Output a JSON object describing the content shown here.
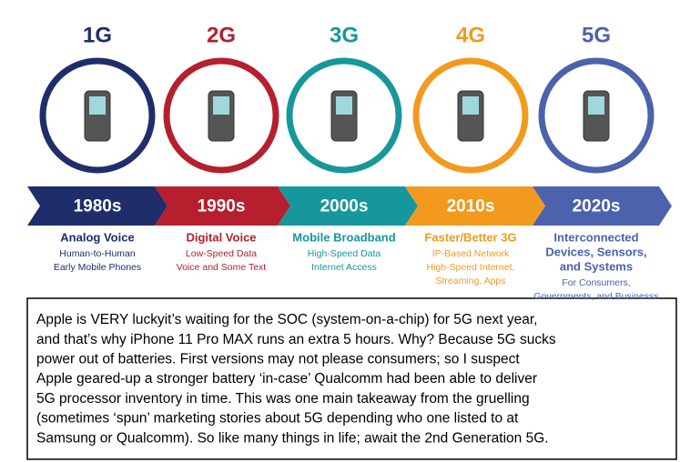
{
  "generations": [
    {
      "label": "1G",
      "decade": "1980s",
      "title": [
        "Analog Voice"
      ],
      "lines": [
        "Human-to-Human",
        "Early Mobile Phones"
      ],
      "color": "#1f2d6b"
    },
    {
      "label": "2G",
      "decade": "1990s",
      "title": [
        "Digital Voice"
      ],
      "lines": [
        "Low-Speed Data",
        "Voice and Some Text"
      ],
      "color": "#b51f2e"
    },
    {
      "label": "3G",
      "decade": "2000s",
      "title": [
        "Mobile Broadband"
      ],
      "lines": [
        "High-Speed Data",
        "Internet Access"
      ],
      "color": "#16979b"
    },
    {
      "label": "4G",
      "decade": "2010s",
      "title": [
        "Faster/Better 3G"
      ],
      "lines": [
        "IP-Based Network",
        "High-Speed Internet,",
        "Streaming, Apps"
      ],
      "color": "#f29a1e"
    },
    {
      "label": "5G",
      "decade": "2020s",
      "title": [
        "Interconnected",
        "Devices, Sensors,",
        "and Systems"
      ],
      "lines": [
        "For Consumers,",
        "Governments, and Businesss"
      ],
      "color": "#4c62ad"
    }
  ],
  "note": {
    "lines": [
      "Apple is VERY luckyit’s waiting for the SOC (system-on-a-chip) for 5G next year,",
      "and that’s why iPhone 11 Pro MAX runs an extra 5 hours. Why? Because 5G sucks",
      "power out of batteries. First versions may not please consumers; so I suspect",
      "Apple geared-up a stronger battery ‘in-case’ Qualcomm had been able to deliver",
      "5G processor inventory in time. This was one main takeaway from the gruelling",
      "(sometimes ‘spun’ marketing stories about 5G depending who one listed to at",
      "Samsung or Qualcomm). So like many things in life; await the 2nd Generation 5G."
    ]
  }
}
